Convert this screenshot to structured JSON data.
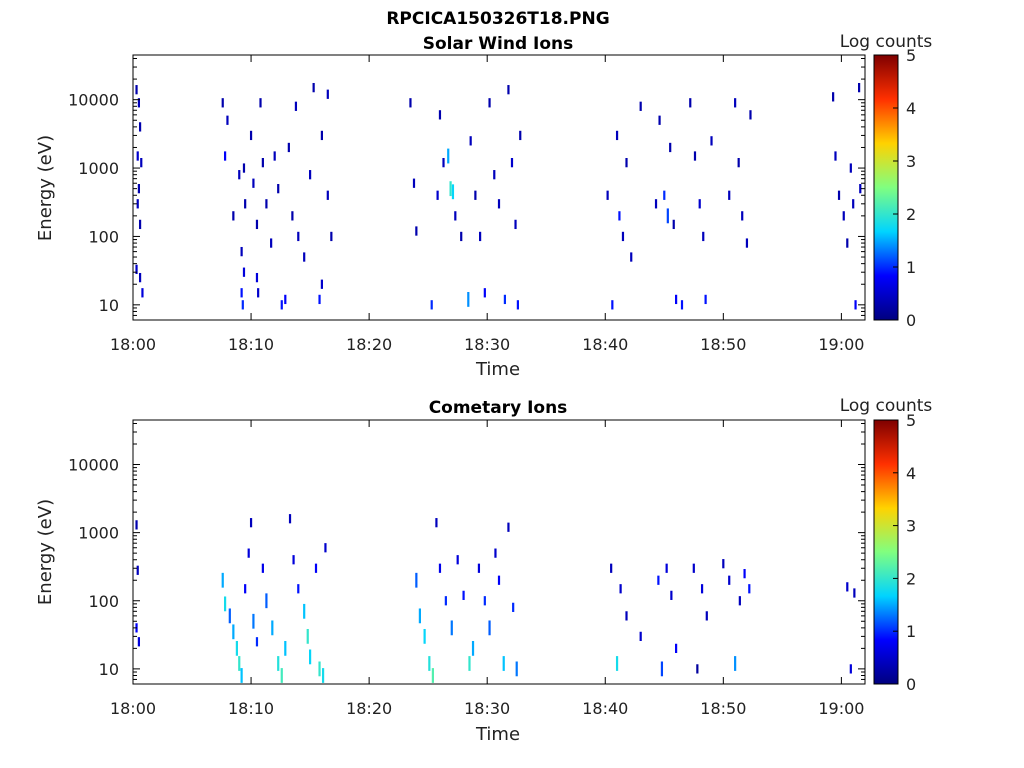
{
  "figure_title": "RPCICA150326T18.PNG",
  "colorscale": [
    "#00007f",
    "#0000ff",
    "#00d4ff",
    "#80ff80",
    "#ffd200",
    "#ff3000",
    "#7f0000"
  ],
  "chart_data": [
    {
      "type": "heatmap",
      "title": "Solar Wind Ions",
      "xlabel": "Time",
      "ylabel": "Energy (eV)",
      "y_scale": "log",
      "ylim": [
        6,
        45000
      ],
      "xlim_minutes": [
        0,
        62
      ],
      "x_tick_labels": [
        "18:00",
        "18:10",
        "18:20",
        "18:30",
        "18:40",
        "18:50",
        "19:00"
      ],
      "y_tick_labels": [
        "10",
        "100",
        "1000",
        "10000"
      ],
      "colorbar": {
        "label": "Log counts",
        "range": [
          0,
          5
        ],
        "ticks": [
          "0",
          "1",
          "2",
          "3",
          "4",
          "5"
        ]
      },
      "active_intervals": [
        {
          "start": "18:00",
          "end": "18:01"
        },
        {
          "start": "18:07",
          "end": "18:17"
        },
        {
          "start": "18:24",
          "end": "18:33"
        },
        {
          "start": "18:40",
          "end": "18:53"
        },
        {
          "start": "18:59",
          "end": "19:02"
        }
      ],
      "points": [
        {
          "t": 0.3,
          "e": 14000,
          "v": 0.3
        },
        {
          "t": 0.5,
          "e": 9000,
          "v": 0.4
        },
        {
          "t": 0.6,
          "e": 4000,
          "v": 0.3
        },
        {
          "t": 0.4,
          "e": 1500,
          "v": 0.5
        },
        {
          "t": 0.7,
          "e": 1200,
          "v": 0.4
        },
        {
          "t": 0.5,
          "e": 500,
          "v": 0.3
        },
        {
          "t": 0.4,
          "e": 300,
          "v": 0.4
        },
        {
          "t": 0.6,
          "e": 150,
          "v": 0.3
        },
        {
          "t": 0.3,
          "e": 33,
          "v": 0.5
        },
        {
          "t": 0.6,
          "e": 25,
          "v": 0.4
        },
        {
          "t": 0.8,
          "e": 15,
          "v": 0.6
        },
        {
          "t": 7.6,
          "e": 9000,
          "v": 0.3
        },
        {
          "t": 7.8,
          "e": 1500,
          "v": 0.8
        },
        {
          "t": 8.0,
          "e": 5000,
          "v": 0.4
        },
        {
          "t": 8.5,
          "e": 200,
          "v": 0.3
        },
        {
          "t": 9.0,
          "e": 800,
          "v": 0.4
        },
        {
          "t": 9.2,
          "e": 60,
          "v": 0.4
        },
        {
          "t": 9.5,
          "e": 300,
          "v": 0.3
        },
        {
          "t": 9.4,
          "e": 1000,
          "v": 0.3
        },
        {
          "t": 9.2,
          "e": 15,
          "v": 0.9
        },
        {
          "t": 9.3,
          "e": 10,
          "v": 1.0
        },
        {
          "t": 9.4,
          "e": 30,
          "v": 0.6
        },
        {
          "t": 10.0,
          "e": 3000,
          "v": 0.3
        },
        {
          "t": 10.2,
          "e": 600,
          "v": 0.4
        },
        {
          "t": 10.5,
          "e": 150,
          "v": 0.3
        },
        {
          "t": 10.8,
          "e": 9000,
          "v": 0.3
        },
        {
          "t": 10.5,
          "e": 25,
          "v": 0.6
        },
        {
          "t": 10.6,
          "e": 15,
          "v": 0.5
        },
        {
          "t": 11.0,
          "e": 1200,
          "v": 0.3
        },
        {
          "t": 11.3,
          "e": 300,
          "v": 0.3
        },
        {
          "t": 11.7,
          "e": 80,
          "v": 0.4
        },
        {
          "t": 12.0,
          "e": 1500,
          "v": 0.4
        },
        {
          "t": 12.3,
          "e": 500,
          "v": 0.3
        },
        {
          "t": 12.6,
          "e": 10,
          "v": 0.9
        },
        {
          "t": 12.9,
          "e": 12,
          "v": 0.8
        },
        {
          "t": 13.2,
          "e": 2000,
          "v": 0.3
        },
        {
          "t": 13.5,
          "e": 200,
          "v": 0.3
        },
        {
          "t": 13.8,
          "e": 8000,
          "v": 0.4
        },
        {
          "t": 14.0,
          "e": 100,
          "v": 0.4
        },
        {
          "t": 14.5,
          "e": 50,
          "v": 0.4
        },
        {
          "t": 15.0,
          "e": 800,
          "v": 0.4
        },
        {
          "t": 15.3,
          "e": 15000,
          "v": 0.3
        },
        {
          "t": 15.8,
          "e": 12,
          "v": 0.9
        },
        {
          "t": 16.0,
          "e": 20,
          "v": 0.5
        },
        {
          "t": 16.5,
          "e": 400,
          "v": 0.4
        },
        {
          "t": 16.8,
          "e": 100,
          "v": 0.3
        },
        {
          "t": 16.5,
          "e": 12000,
          "v": 0.4
        },
        {
          "t": 16.0,
          "e": 3000,
          "v": 0.3
        },
        {
          "t": 23.5,
          "e": 9000,
          "v": 0.3
        },
        {
          "t": 23.8,
          "e": 600,
          "v": 0.4
        },
        {
          "t": 24.0,
          "e": 120,
          "v": 0.3
        },
        {
          "t": 25.3,
          "e": 10,
          "v": 1.0
        },
        {
          "t": 25.8,
          "e": 400,
          "v": 0.5
        },
        {
          "t": 26.0,
          "e": 6000,
          "v": 0.3
        },
        {
          "t": 26.3,
          "e": 1200,
          "v": 0.4
        },
        {
          "t": 26.7,
          "e": 1500,
          "v": 1.5
        },
        {
          "t": 26.9,
          "e": 500,
          "v": 2.0
        },
        {
          "t": 27.1,
          "e": 450,
          "v": 1.7
        },
        {
          "t": 27.3,
          "e": 200,
          "v": 0.4
        },
        {
          "t": 27.8,
          "e": 100,
          "v": 0.3
        },
        {
          "t": 28.4,
          "e": 12,
          "v": 1.4
        },
        {
          "t": 28.6,
          "e": 2500,
          "v": 0.4
        },
        {
          "t": 29.0,
          "e": 400,
          "v": 0.3
        },
        {
          "t": 29.4,
          "e": 100,
          "v": 0.4
        },
        {
          "t": 29.8,
          "e": 15,
          "v": 0.8
        },
        {
          "t": 30.2,
          "e": 9000,
          "v": 0.3
        },
        {
          "t": 30.6,
          "e": 800,
          "v": 0.4
        },
        {
          "t": 31.0,
          "e": 300,
          "v": 0.4
        },
        {
          "t": 31.5,
          "e": 12,
          "v": 1.0
        },
        {
          "t": 31.8,
          "e": 14000,
          "v": 0.3
        },
        {
          "t": 32.1,
          "e": 1200,
          "v": 0.5
        },
        {
          "t": 32.4,
          "e": 150,
          "v": 0.4
        },
        {
          "t": 32.6,
          "e": 10,
          "v": 0.9
        },
        {
          "t": 32.8,
          "e": 3000,
          "v": 0.3
        },
        {
          "t": 40.2,
          "e": 400,
          "v": 0.4
        },
        {
          "t": 40.6,
          "e": 10,
          "v": 0.9
        },
        {
          "t": 41.0,
          "e": 3000,
          "v": 0.4
        },
        {
          "t": 41.2,
          "e": 200,
          "v": 0.9
        },
        {
          "t": 41.5,
          "e": 100,
          "v": 0.4
        },
        {
          "t": 41.8,
          "e": 1200,
          "v": 0.3
        },
        {
          "t": 42.2,
          "e": 50,
          "v": 0.4
        },
        {
          "t": 43.0,
          "e": 8000,
          "v": 0.3
        },
        {
          "t": 44.3,
          "e": 300,
          "v": 0.4
        },
        {
          "t": 44.6,
          "e": 5000,
          "v": 0.3
        },
        {
          "t": 45.0,
          "e": 400,
          "v": 1.0
        },
        {
          "t": 45.3,
          "e": 200,
          "v": 1.1
        },
        {
          "t": 45.5,
          "e": 2000,
          "v": 0.3
        },
        {
          "t": 45.8,
          "e": 150,
          "v": 0.3
        },
        {
          "t": 46.0,
          "e": 12,
          "v": 0.8
        },
        {
          "t": 46.5,
          "e": 10,
          "v": 0.9
        },
        {
          "t": 47.2,
          "e": 9000,
          "v": 0.3
        },
        {
          "t": 47.6,
          "e": 1500,
          "v": 0.3
        },
        {
          "t": 48.0,
          "e": 300,
          "v": 0.5
        },
        {
          "t": 48.3,
          "e": 100,
          "v": 0.4
        },
        {
          "t": 48.5,
          "e": 12,
          "v": 0.9
        },
        {
          "t": 49.0,
          "e": 2500,
          "v": 0.4
        },
        {
          "t": 50.5,
          "e": 400,
          "v": 0.4
        },
        {
          "t": 51.0,
          "e": 9000,
          "v": 0.4
        },
        {
          "t": 51.3,
          "e": 1200,
          "v": 0.3
        },
        {
          "t": 51.6,
          "e": 200,
          "v": 0.4
        },
        {
          "t": 52.0,
          "e": 80,
          "v": 0.4
        },
        {
          "t": 52.3,
          "e": 6000,
          "v": 0.3
        },
        {
          "t": 59.3,
          "e": 11000,
          "v": 0.3
        },
        {
          "t": 59.5,
          "e": 1500,
          "v": 0.4
        },
        {
          "t": 59.8,
          "e": 400,
          "v": 0.3
        },
        {
          "t": 60.2,
          "e": 200,
          "v": 0.4
        },
        {
          "t": 60.5,
          "e": 80,
          "v": 0.3
        },
        {
          "t": 60.8,
          "e": 1000,
          "v": 0.4
        },
        {
          "t": 61.0,
          "e": 300,
          "v": 0.4
        },
        {
          "t": 61.2,
          "e": 10,
          "v": 0.8
        },
        {
          "t": 61.5,
          "e": 15000,
          "v": 0.3
        },
        {
          "t": 61.6,
          "e": 500,
          "v": 0.4
        }
      ]
    },
    {
      "type": "heatmap",
      "title": "Cometary Ions",
      "xlabel": "Time",
      "ylabel": "Energy (eV)",
      "y_scale": "log",
      "ylim": [
        6,
        45000
      ],
      "xlim_minutes": [
        0,
        62
      ],
      "x_tick_labels": [
        "18:00",
        "18:10",
        "18:20",
        "18:30",
        "18:40",
        "18:50",
        "19:00"
      ],
      "y_tick_labels": [
        "10",
        "100",
        "1000",
        "10000"
      ],
      "colorbar": {
        "label": "Log counts",
        "range": [
          0,
          5
        ],
        "ticks": [
          "0",
          "1",
          "2",
          "3",
          "4",
          "5"
        ]
      },
      "active_intervals": [
        {
          "start": "18:00",
          "end": "18:01"
        },
        {
          "start": "18:07",
          "end": "18:17"
        },
        {
          "start": "18:24",
          "end": "18:33"
        },
        {
          "start": "18:40",
          "end": "18:53"
        },
        {
          "start": "18:59",
          "end": "19:01"
        }
      ],
      "points": [
        {
          "t": 0.3,
          "e": 1300,
          "v": 0.3
        },
        {
          "t": 0.4,
          "e": 280,
          "v": 0.4
        },
        {
          "t": 0.3,
          "e": 40,
          "v": 0.8
        },
        {
          "t": 0.5,
          "e": 25,
          "v": 0.6
        },
        {
          "t": 7.6,
          "e": 200,
          "v": 1.5
        },
        {
          "t": 7.8,
          "e": 90,
          "v": 1.8
        },
        {
          "t": 8.2,
          "e": 60,
          "v": 1.2
        },
        {
          "t": 8.5,
          "e": 35,
          "v": 1.5
        },
        {
          "t": 8.8,
          "e": 20,
          "v": 1.8
        },
        {
          "t": 9.0,
          "e": 12,
          "v": 2.0
        },
        {
          "t": 9.2,
          "e": 8,
          "v": 1.6
        },
        {
          "t": 9.5,
          "e": 150,
          "v": 0.8
        },
        {
          "t": 9.8,
          "e": 500,
          "v": 0.6
        },
        {
          "t": 10.0,
          "e": 1400,
          "v": 0.4
        },
        {
          "t": 10.2,
          "e": 50,
          "v": 1.3
        },
        {
          "t": 10.5,
          "e": 25,
          "v": 1.0
        },
        {
          "t": 11.0,
          "e": 300,
          "v": 0.7
        },
        {
          "t": 11.3,
          "e": 100,
          "v": 1.2
        },
        {
          "t": 11.8,
          "e": 40,
          "v": 1.5
        },
        {
          "t": 12.3,
          "e": 12,
          "v": 1.9
        },
        {
          "t": 12.6,
          "e": 8,
          "v": 2.1
        },
        {
          "t": 12.9,
          "e": 20,
          "v": 1.6
        },
        {
          "t": 13.3,
          "e": 1600,
          "v": 0.4
        },
        {
          "t": 13.6,
          "e": 400,
          "v": 0.6
        },
        {
          "t": 14.0,
          "e": 150,
          "v": 0.9
        },
        {
          "t": 14.5,
          "e": 70,
          "v": 1.6
        },
        {
          "t": 14.8,
          "e": 30,
          "v": 2.0
        },
        {
          "t": 15.0,
          "e": 15,
          "v": 1.7
        },
        {
          "t": 15.5,
          "e": 300,
          "v": 0.8
        },
        {
          "t": 15.8,
          "e": 10,
          "v": 2.0
        },
        {
          "t": 16.1,
          "e": 8,
          "v": 1.8
        },
        {
          "t": 16.3,
          "e": 600,
          "v": 0.5
        },
        {
          "t": 24.0,
          "e": 200,
          "v": 1.2
        },
        {
          "t": 24.3,
          "e": 60,
          "v": 1.5
        },
        {
          "t": 24.7,
          "e": 30,
          "v": 1.7
        },
        {
          "t": 25.1,
          "e": 12,
          "v": 1.9
        },
        {
          "t": 25.4,
          "e": 8,
          "v": 2.2
        },
        {
          "t": 25.7,
          "e": 1400,
          "v": 0.4
        },
        {
          "t": 26.0,
          "e": 300,
          "v": 0.7
        },
        {
          "t": 26.5,
          "e": 100,
          "v": 1.0
        },
        {
          "t": 27.0,
          "e": 40,
          "v": 1.3
        },
        {
          "t": 27.5,
          "e": 400,
          "v": 0.6
        },
        {
          "t": 28.0,
          "e": 120,
          "v": 0.9
        },
        {
          "t": 28.5,
          "e": 12,
          "v": 2.0
        },
        {
          "t": 28.8,
          "e": 20,
          "v": 1.5
        },
        {
          "t": 29.3,
          "e": 300,
          "v": 0.6
        },
        {
          "t": 29.8,
          "e": 100,
          "v": 1.0
        },
        {
          "t": 30.2,
          "e": 40,
          "v": 1.2
        },
        {
          "t": 30.7,
          "e": 500,
          "v": 0.5
        },
        {
          "t": 31.0,
          "e": 200,
          "v": 0.8
        },
        {
          "t": 31.4,
          "e": 12,
          "v": 1.6
        },
        {
          "t": 31.8,
          "e": 1200,
          "v": 0.4
        },
        {
          "t": 32.2,
          "e": 80,
          "v": 1.0
        },
        {
          "t": 32.5,
          "e": 10,
          "v": 1.3
        },
        {
          "t": 40.5,
          "e": 300,
          "v": 0.4
        },
        {
          "t": 41.0,
          "e": 12,
          "v": 1.8
        },
        {
          "t": 41.3,
          "e": 150,
          "v": 0.5
        },
        {
          "t": 41.8,
          "e": 60,
          "v": 0.4
        },
        {
          "t": 43.0,
          "e": 30,
          "v": 0.5
        },
        {
          "t": 44.5,
          "e": 200,
          "v": 0.9
        },
        {
          "t": 44.8,
          "e": 10,
          "v": 1.1
        },
        {
          "t": 45.2,
          "e": 300,
          "v": 0.6
        },
        {
          "t": 45.6,
          "e": 120,
          "v": 0.5
        },
        {
          "t": 46.0,
          "e": 20,
          "v": 0.8
        },
        {
          "t": 47.5,
          "e": 300,
          "v": 0.5
        },
        {
          "t": 47.8,
          "e": 10,
          "v": 0.2
        },
        {
          "t": 48.2,
          "e": 150,
          "v": 0.6
        },
        {
          "t": 48.6,
          "e": 60,
          "v": 0.4
        },
        {
          "t": 50.0,
          "e": 350,
          "v": 0.4
        },
        {
          "t": 50.5,
          "e": 200,
          "v": 0.5
        },
        {
          "t": 51.0,
          "e": 12,
          "v": 1.4
        },
        {
          "t": 51.4,
          "e": 100,
          "v": 0.4
        },
        {
          "t": 51.8,
          "e": 250,
          "v": 0.8
        },
        {
          "t": 52.2,
          "e": 150,
          "v": 0.9
        },
        {
          "t": 60.5,
          "e": 160,
          "v": 0.5
        },
        {
          "t": 60.8,
          "e": 10,
          "v": 0.6
        },
        {
          "t": 61.1,
          "e": 130,
          "v": 0.4
        }
      ]
    }
  ]
}
